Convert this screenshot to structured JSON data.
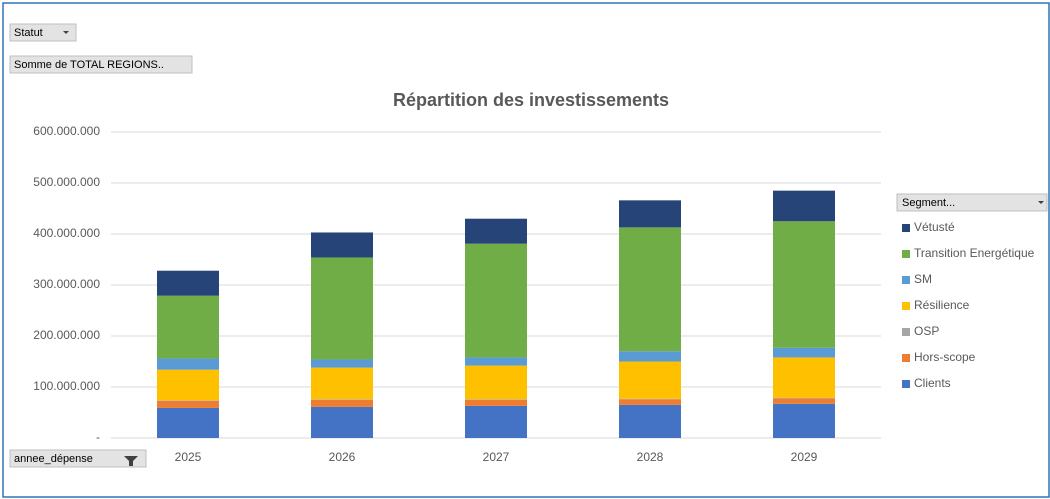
{
  "ui": {
    "filter_button": "Statut",
    "value_button": "Somme de TOTAL REGIONS..",
    "axis_button": "annee_dépense",
    "legend_header": "Segment..."
  },
  "chart_data": {
    "type": "stacked_bar",
    "title": "Répartition des investissements",
    "categories": [
      "2025",
      "2026",
      "2027",
      "2028",
      "2029"
    ],
    "series": [
      {
        "name": "Clients",
        "color": "#4472c4",
        "values": [
          59000000,
          61000000,
          63000000,
          65000000,
          67000000
        ]
      },
      {
        "name": "Hors-scope",
        "color": "#ed7d31",
        "values": [
          14000000,
          14000000,
          12000000,
          11000000,
          11000000
        ]
      },
      {
        "name": "OSP",
        "color": "#a5a5a5",
        "values": [
          1000000,
          1000000,
          1000000,
          1000000,
          1000000
        ]
      },
      {
        "name": "Résilience",
        "color": "#ffc000",
        "values": [
          60000000,
          62000000,
          66000000,
          73000000,
          79000000
        ]
      },
      {
        "name": "SM",
        "color": "#5b9bd5",
        "values": [
          22000000,
          16000000,
          16000000,
          20000000,
          19000000
        ]
      },
      {
        "name": "Transition Energétique",
        "color": "#70ad47",
        "values": [
          123000000,
          200000000,
          223000000,
          243000000,
          248000000
        ]
      },
      {
        "name": "Vétusté",
        "color": "#264478",
        "values": [
          49000000,
          49000000,
          49000000,
          53000000,
          60000000
        ]
      }
    ],
    "ylim": [
      0,
      600000000
    ],
    "yticks": [
      {
        "value": 0,
        "label": "-"
      },
      {
        "value": 100000000,
        "label": "100.000.000"
      },
      {
        "value": 200000000,
        "label": "200.000.000"
      },
      {
        "value": 300000000,
        "label": "300.000.000"
      },
      {
        "value": 400000000,
        "label": "400.000.000"
      },
      {
        "value": 500000000,
        "label": "500.000.000"
      },
      {
        "value": 600000000,
        "label": "600.000.000"
      }
    ],
    "grid": true,
    "legend": "right"
  }
}
